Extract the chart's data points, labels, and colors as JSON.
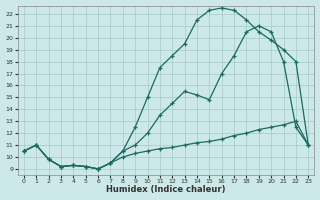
{
  "xlabel": "Humidex (Indice chaleur)",
  "bg_color": "#cce8e8",
  "line_color": "#1a6b60",
  "grid_color": "#aacfcf",
  "xlim": [
    -0.5,
    23.5
  ],
  "ylim": [
    8.5,
    22.7
  ],
  "xticks": [
    0,
    1,
    2,
    3,
    4,
    5,
    6,
    7,
    8,
    9,
    10,
    11,
    12,
    13,
    14,
    15,
    16,
    17,
    18,
    19,
    20,
    21,
    22,
    23
  ],
  "yticks": [
    9,
    10,
    11,
    12,
    13,
    14,
    15,
    16,
    17,
    18,
    19,
    20,
    21,
    22
  ],
  "line_min_x": [
    0,
    1,
    2,
    3,
    4,
    5,
    6,
    7,
    8,
    9,
    10,
    11,
    12,
    13,
    14,
    15,
    16,
    17,
    18,
    19,
    20,
    21,
    22,
    23
  ],
  "line_min_y": [
    10.5,
    11.0,
    9.8,
    9.2,
    9.3,
    9.2,
    9.0,
    9.5,
    10.0,
    10.3,
    10.5,
    10.7,
    10.8,
    11.0,
    11.2,
    11.3,
    11.5,
    11.8,
    12.0,
    12.3,
    12.5,
    12.7,
    13.0,
    11.0
  ],
  "line_max_x": [
    0,
    1,
    2,
    3,
    4,
    5,
    6,
    7,
    8,
    9,
    10,
    11,
    12,
    13,
    14,
    15,
    16,
    17,
    18,
    19,
    20,
    21,
    22,
    23
  ],
  "line_max_y": [
    10.5,
    11.0,
    9.8,
    9.2,
    9.3,
    9.2,
    9.0,
    9.5,
    10.5,
    12.5,
    15.0,
    17.5,
    18.5,
    19.5,
    21.5,
    22.3,
    22.5,
    22.3,
    21.5,
    20.5,
    19.8,
    19.0,
    18.0,
    11.0
  ],
  "line_mid_x": [
    0,
    1,
    2,
    3,
    4,
    5,
    6,
    7,
    8,
    9,
    10,
    11,
    12,
    13,
    14,
    15,
    16,
    17,
    18,
    19,
    20,
    21,
    22,
    23
  ],
  "line_mid_y": [
    10.5,
    11.0,
    9.8,
    9.2,
    9.3,
    9.2,
    9.0,
    9.5,
    10.5,
    11.0,
    12.0,
    13.5,
    14.5,
    15.5,
    15.2,
    14.8,
    17.0,
    18.5,
    20.5,
    21.0,
    20.5,
    18.0,
    12.5,
    11.0
  ]
}
